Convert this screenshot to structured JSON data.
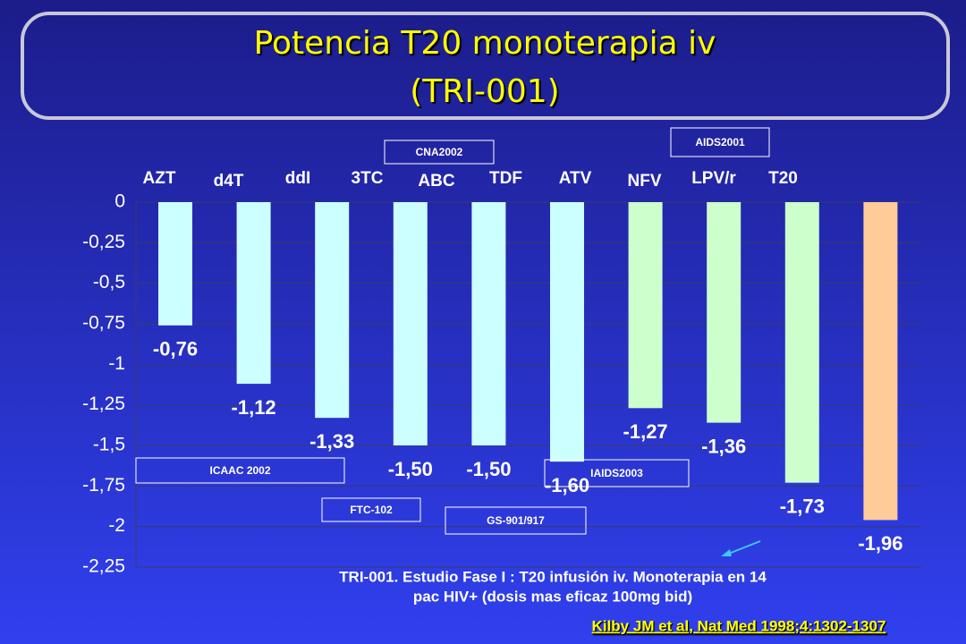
{
  "chart_data": {
    "type": "bar",
    "title": [
      "Potencia T20 monoterapia iv",
      "(TRI-001)"
    ],
    "categories": [
      "AZT",
      "d4T",
      "ddI",
      "3TC",
      "ABC",
      "TDF",
      "ATV",
      "NFV",
      "LPV/r",
      "T20"
    ],
    "values": [
      -0.76,
      -1.12,
      -1.33,
      -1.5,
      -1.5,
      -1.6,
      -1.27,
      -1.36,
      -1.73,
      -1.96
    ],
    "value_labels": [
      "-0,76",
      "-1,12",
      "-1,33",
      "-1,50",
      "-1,50",
      "-1,60",
      "-1,27",
      "-1,36",
      "-1,73",
      "-1,96"
    ],
    "colors": [
      "#ccffff",
      "#ccffff",
      "#ccffff",
      "#ccffff",
      "#ccffff",
      "#ccffff",
      "#ccffcc",
      "#ccffcc",
      "#ccffcc",
      "#ffcc99"
    ],
    "ylim": [
      -2.25,
      0
    ],
    "yticks": [
      0,
      {
        "value": -0.25,
        "label": "-0,25"
      },
      {
        "value": -0.5,
        "label": "-0,5"
      },
      {
        "value": -0.75,
        "label": "-0,75"
      },
      -1,
      {
        "value": -1.25,
        "label": "-1,25"
      },
      {
        "value": -1.5,
        "label": "-1,5"
      },
      {
        "value": -1.75,
        "label": "-1,75"
      },
      -2,
      {
        "value": -2.25,
        "label": "-2,25"
      }
    ],
    "grid": true,
    "annotations": [
      "CNA2002",
      "AIDS2001",
      "ICAAC 2002",
      "FTC-102",
      "GS-901/917",
      "IAIDS2003"
    ],
    "footnote": [
      "TRI-001. Estudio Fase I : T20 infusión iv. Monoterapia en 14",
      "pac HIV+ (dosis mas eficaz 100mg bid)"
    ],
    "citation": "Kilby JM et al, Nat Med 1998;4:1302-1307"
  }
}
